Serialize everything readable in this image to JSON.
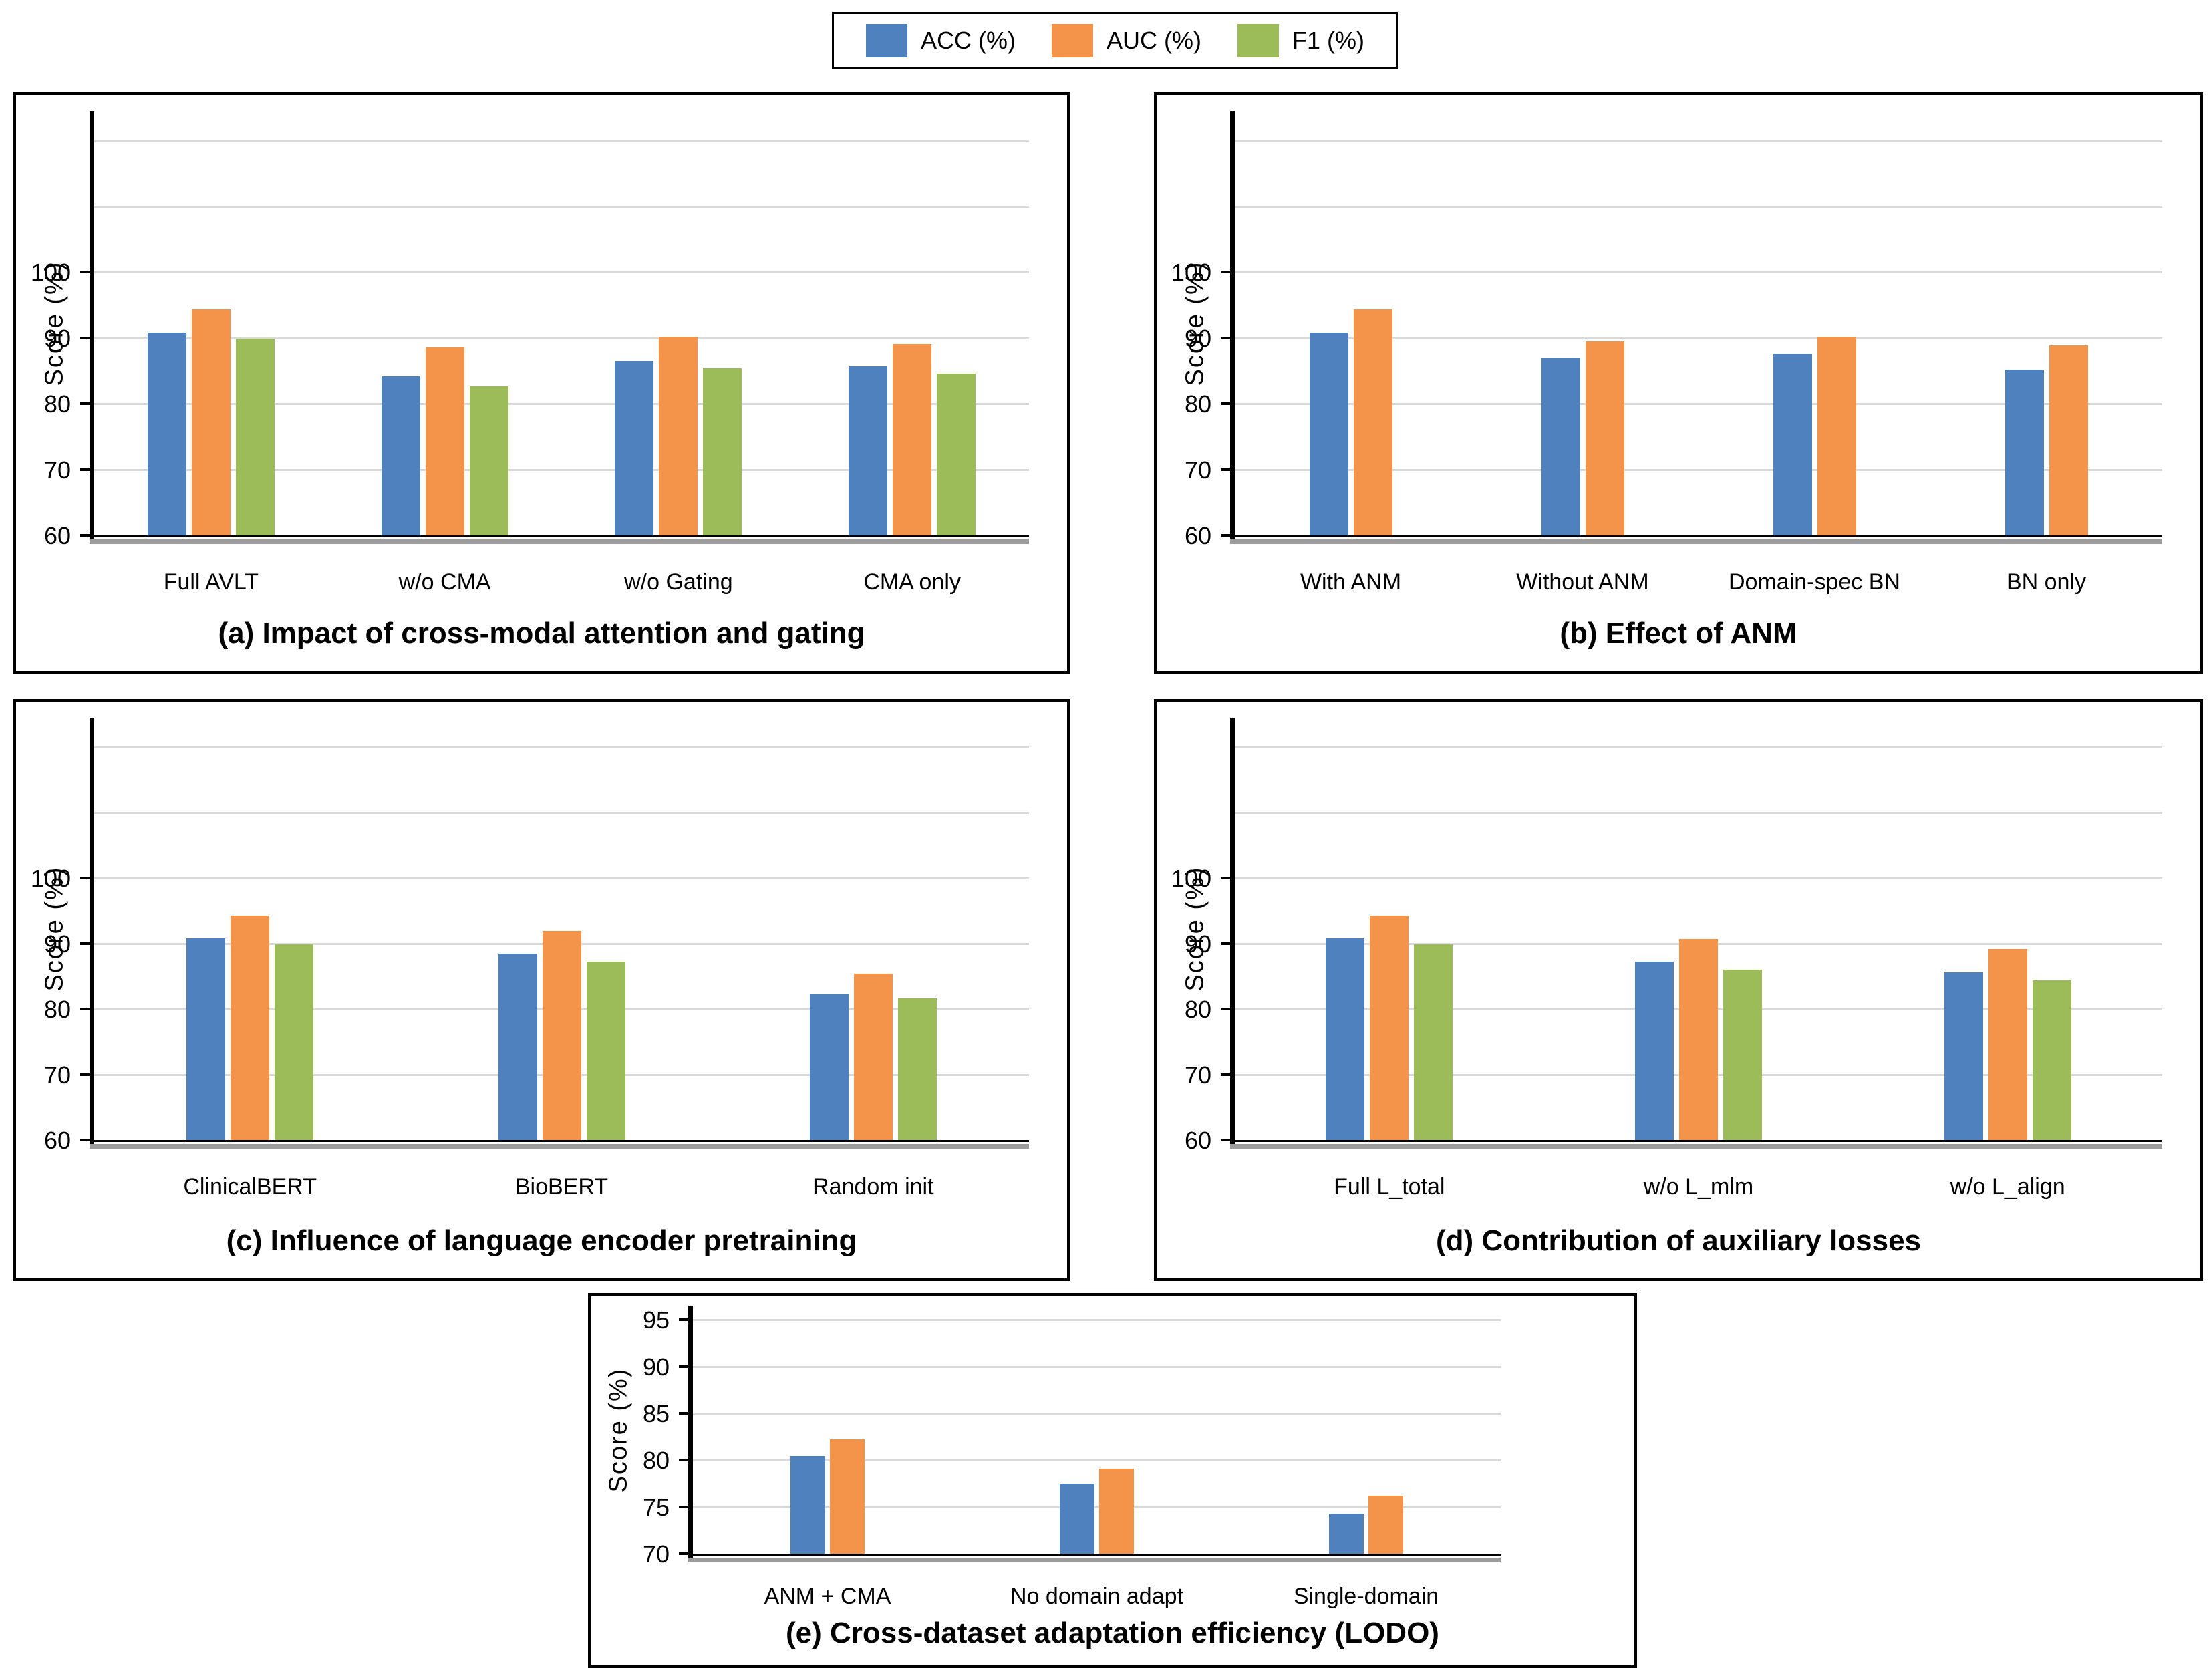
{
  "figure": {
    "background": "#ffffff",
    "text_color": "#000000",
    "gridline_color": "#D9D9D9"
  },
  "legend": {
    "items": [
      {
        "label": "ACC (%)",
        "color": "#4E81BD"
      },
      {
        "label": "AUC (%)",
        "color": "#F3944A"
      },
      {
        "label": "F1 (%)",
        "color": "#9BBC59"
      }
    ]
  },
  "chart_data": [
    {
      "id": "a",
      "type": "bar",
      "title": "(a) Impact of cross-modal attention and gating",
      "ylabel": "Score (%)",
      "ylim": [
        60,
        124.5
      ],
      "yticks": [
        60,
        70,
        80,
        90,
        100
      ],
      "gridlines": [
        70,
        80,
        90,
        100,
        110,
        120
      ],
      "legend_position": "top-outside",
      "grid": true,
      "categories": [
        "Full AVLT",
        "w/o CMA",
        "w/o Gating",
        "CMA only"
      ],
      "series": [
        {
          "name": "ACC (%)",
          "color": "#4E81BD",
          "values": [
            90.8,
            84.2,
            86.5,
            85.7
          ]
        },
        {
          "name": "AUC (%)",
          "color": "#F3944A",
          "values": [
            94.3,
            88.5,
            90.2,
            89.1
          ]
        },
        {
          "name": "F1 (%)",
          "color": "#9BBC59",
          "values": [
            89.9,
            82.7,
            85.4,
            84.6
          ]
        }
      ]
    },
    {
      "id": "b",
      "type": "bar",
      "title": "(b) Effect of ANM",
      "ylabel": "Score (%)",
      "ylim": [
        60,
        124.5
      ],
      "yticks": [
        60,
        70,
        80,
        90,
        100
      ],
      "gridlines": [
        70,
        80,
        90,
        100,
        110,
        120
      ],
      "grid": true,
      "categories": [
        "With ANM",
        "Without ANM",
        "Domain-spec BN",
        "BN only"
      ],
      "series": [
        {
          "name": "ACC (%)",
          "color": "#4E81BD",
          "values": [
            90.8,
            86.9,
            87.6,
            85.2
          ]
        },
        {
          "name": "AUC (%)",
          "color": "#F3944A",
          "values": [
            94.3,
            89.5,
            90.2,
            88.8
          ]
        }
      ]
    },
    {
      "id": "c",
      "type": "bar",
      "title": "(c) Influence of language encoder pretraining",
      "ylabel": "Score (%)",
      "ylim": [
        60,
        124.5
      ],
      "yticks": [
        60,
        70,
        80,
        90,
        100
      ],
      "gridlines": [
        70,
        80,
        90,
        100,
        110,
        120
      ],
      "grid": true,
      "categories": [
        "ClinicalBERT",
        "BioBERT",
        "Random init"
      ],
      "series": [
        {
          "name": "ACC (%)",
          "color": "#4E81BD",
          "values": [
            90.8,
            88.5,
            82.2
          ]
        },
        {
          "name": "AUC (%)",
          "color": "#F3944A",
          "values": [
            94.3,
            91.9,
            85.4
          ]
        },
        {
          "name": "F1 (%)",
          "color": "#9BBC59",
          "values": [
            89.9,
            87.2,
            81.6
          ]
        }
      ]
    },
    {
      "id": "d",
      "type": "bar",
      "title": "(d) Contribution of auxiliary losses",
      "ylabel": "Score (%)",
      "ylim": [
        60,
        124.5
      ],
      "yticks": [
        60,
        70,
        80,
        90,
        100
      ],
      "gridlines": [
        70,
        80,
        90,
        100,
        110,
        120
      ],
      "grid": true,
      "categories": [
        "Full L_total",
        "w/o L_mlm",
        "w/o L_align"
      ],
      "series": [
        {
          "name": "ACC (%)",
          "color": "#4E81BD",
          "values": [
            90.8,
            87.3,
            85.6
          ]
        },
        {
          "name": "AUC (%)",
          "color": "#F3944A",
          "values": [
            94.3,
            90.7,
            89.2
          ]
        },
        {
          "name": "F1 (%)",
          "color": "#9BBC59",
          "values": [
            89.9,
            86.0,
            84.4
          ]
        }
      ]
    },
    {
      "id": "e",
      "type": "bar",
      "title": "(e) Cross-dataset adaptation efficiency (LODO)",
      "ylabel": "Score (%)",
      "ylim": [
        70,
        96.5
      ],
      "yticks": [
        70,
        75,
        80,
        85,
        90,
        95
      ],
      "gridlines": [
        75,
        80,
        85,
        90,
        95
      ],
      "grid": true,
      "categories": [
        "ANM + CMA",
        "No domain adapt",
        "Single-domain"
      ],
      "series": [
        {
          "name": "ACC (%)",
          "color": "#4E81BD",
          "values": [
            80.4,
            77.5,
            74.3
          ]
        },
        {
          "name": "AUC (%)",
          "color": "#F3944A",
          "values": [
            82.2,
            79.1,
            76.2
          ]
        }
      ]
    }
  ]
}
